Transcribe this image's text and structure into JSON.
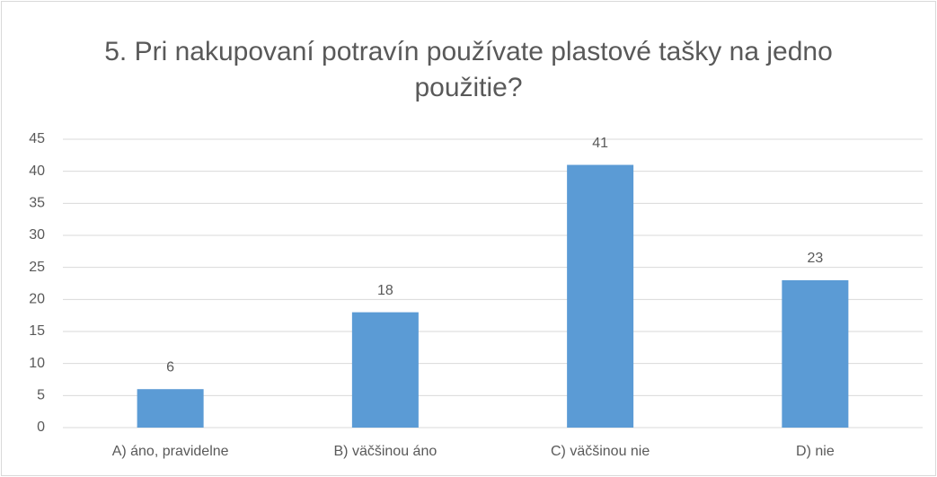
{
  "chart_data": {
    "type": "bar",
    "title": "5. Pri nakupovaní potravín používate plastové tašky na jedno použitie?",
    "categories": [
      "A) áno, pravidelne",
      "B) väčšinou áno",
      "C) väčšinou nie",
      "D) nie"
    ],
    "values": [
      6,
      18,
      41,
      23
    ],
    "color": "#5b9bd5",
    "ylim": [
      0,
      45
    ],
    "yticks": [
      0,
      5,
      10,
      15,
      20,
      25,
      30,
      35,
      40,
      45
    ],
    "grid": true
  }
}
